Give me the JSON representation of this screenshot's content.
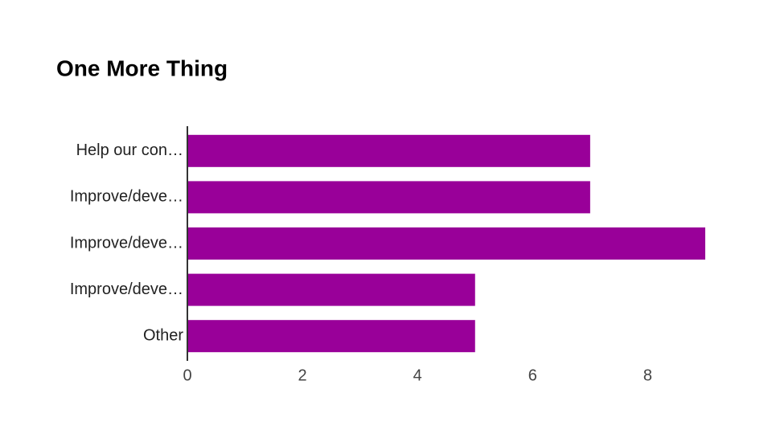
{
  "chart_data": {
    "type": "bar",
    "orientation": "horizontal",
    "title": "One More Thing",
    "categories": [
      "Help our con…",
      "Improve/deve…",
      "Improve/deve…",
      "Improve/deve…",
      "Other"
    ],
    "values": [
      7,
      7,
      9,
      5,
      5
    ],
    "color": "#990099",
    "xlim": [
      0,
      9
    ],
    "xticks": [
      0,
      2,
      4,
      6,
      8
    ],
    "grid": false
  }
}
